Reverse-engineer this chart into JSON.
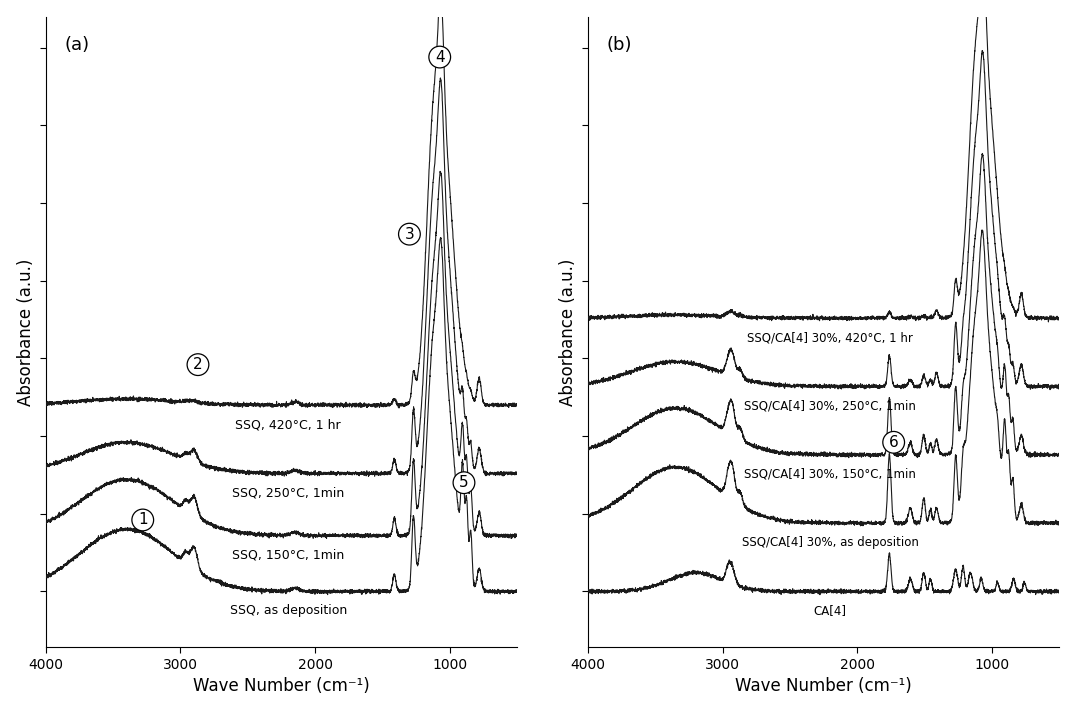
{
  "panel_a_labels": [
    "SSQ, as deposition",
    "SSQ, 150°C, 1min",
    "SSQ, 250°C, 1min",
    "SSQ, 420°C, 1 hr"
  ],
  "panel_b_labels": [
    "CA[4]",
    "SSQ/CA[4] 30%, as deposition",
    "SSQ/CA[4] 30%, 150°C, 1min",
    "SSQ/CA[4] 30%, 250°C, 1min",
    "SSQ/CA[4] 30%, 420°C, 1 hr"
  ],
  "ylabel": "Absorbance (a.u.)",
  "xlabel": "Wave Number (cm⁻¹)",
  "panel_a_label": "(a)",
  "panel_b_label": "(b)",
  "linecolor": "#1a1a1a",
  "linewidth": 0.8,
  "fontsize_label": 12,
  "fontsize_tick": 10,
  "fontsize_annot": 11,
  "fontsize_curve_label": 9
}
